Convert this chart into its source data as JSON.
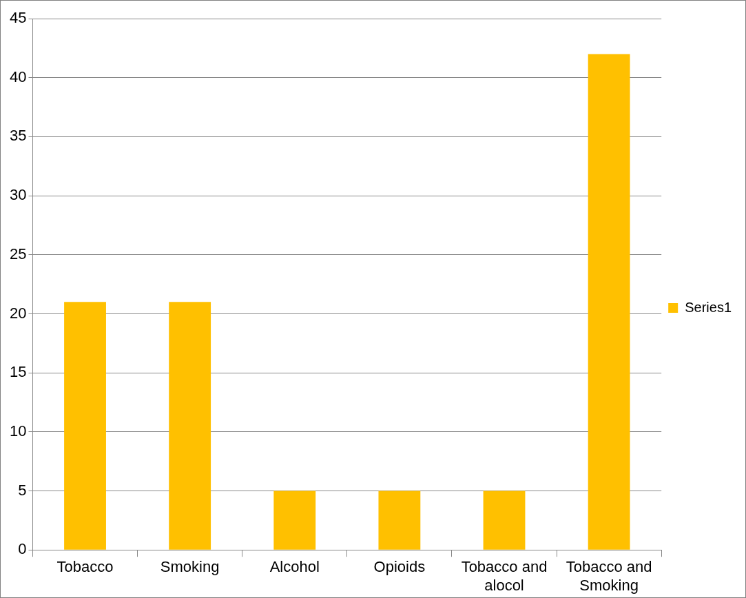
{
  "chart_data": {
    "type": "bar",
    "categories": [
      "Tobacco",
      "Smoking",
      "Alcohol",
      "Opioids",
      "Tobacco and alocol",
      "Tobacco and Smoking"
    ],
    "series": [
      {
        "name": "Series1",
        "color": "#ffc000",
        "values": [
          21,
          21,
          5,
          5,
          5,
          42
        ]
      }
    ],
    "ylim": [
      0,
      45
    ],
    "yticks": [
      0,
      5,
      10,
      15,
      20,
      25,
      30,
      35,
      40,
      45
    ],
    "grid": "y",
    "legend": "right"
  }
}
